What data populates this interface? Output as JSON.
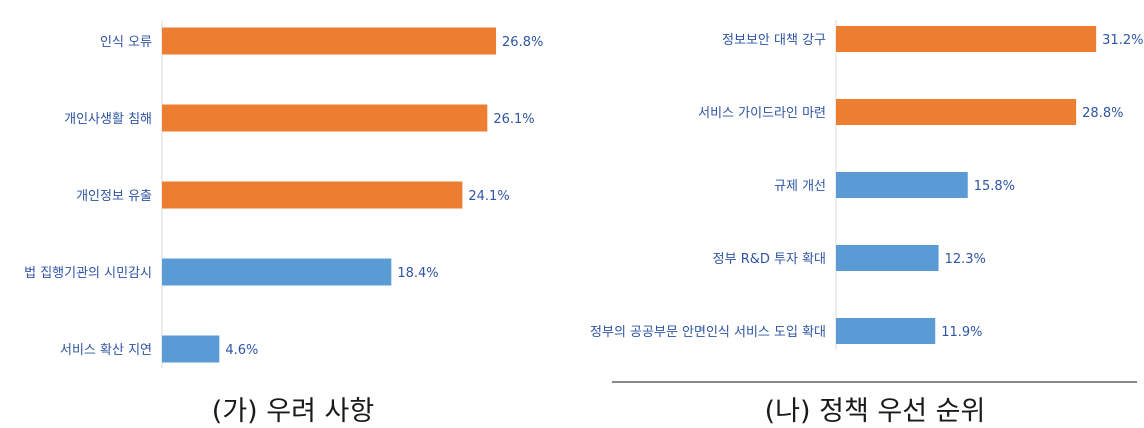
{
  "colors": {
    "highlight": "#ED7D31",
    "normal": "#5B9BD5",
    "text": "#2F55A4"
  },
  "chart_data": [
    {
      "type": "bar",
      "orientation": "horizontal",
      "title": "(가) 우려 사항",
      "categories": [
        "인식 오류",
        "개인사생활 침해",
        "개인정보 유출",
        "법 집행기관의 시민감시",
        "서비스 확산 지연"
      ],
      "values": [
        26.8,
        26.1,
        24.1,
        18.4,
        4.6
      ],
      "labels": [
        "26.8%",
        "26.1%",
        "24.1%",
        "18.4%",
        "4.6%"
      ],
      "highlighted": [
        true,
        true,
        true,
        false,
        false
      ],
      "unit": "%",
      "xlim": [
        0,
        28
      ],
      "grid": false
    },
    {
      "type": "bar",
      "orientation": "horizontal",
      "title": "(나) 정책 우선 순위",
      "categories": [
        "정보보안 대책 강구",
        "서비스 가이드라인 마련",
        "규제 개선",
        "정부 R&D 투자 확대",
        "정부의 공공부문 안면인식 서비스 도입 확대"
      ],
      "values": [
        31.2,
        28.8,
        15.8,
        12.3,
        11.9
      ],
      "labels": [
        "31.2%",
        "28.8%",
        "15.8%",
        "12.3%",
        "11.9%"
      ],
      "highlighted": [
        true,
        true,
        false,
        false,
        false
      ],
      "unit": "%",
      "xlim": [
        0,
        32.5
      ],
      "grid": false
    }
  ]
}
